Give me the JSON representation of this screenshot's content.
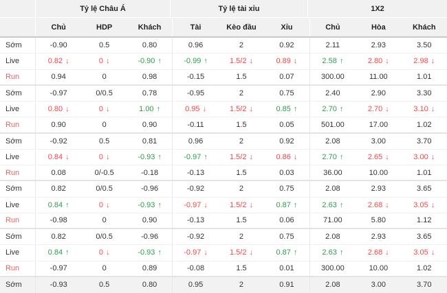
{
  "colors": {
    "red": "#ff4444",
    "green": "#2e9e4e",
    "run_label": "#e06666",
    "header_bg": "#f1f1f1",
    "header_border": "#c9c9c9",
    "shaded_bg": "#f2f2f2",
    "row_line": "#f0f0f0",
    "block_line": "#e3e3e3",
    "vsep": "#e8e8e8"
  },
  "header": {
    "groups": [
      "",
      "Tỷ lệ Châu Á",
      "Tỷ lệ tài xỉu",
      "1X2"
    ],
    "columns": [
      "",
      "Chủ",
      "HDP",
      "Khách",
      "Tài",
      "Kèo đầu",
      "Xỉu",
      "Chủ",
      "Hòa",
      "Khách"
    ]
  },
  "rows": [
    {
      "label": "Sớm",
      "cells": [
        {
          "v": "-0.90"
        },
        {
          "v": "0.5"
        },
        {
          "v": "0.80"
        },
        {
          "v": "0.96"
        },
        {
          "v": "2"
        },
        {
          "v": "0.92"
        },
        {
          "v": "2.11"
        },
        {
          "v": "2.93"
        },
        {
          "v": "3.50"
        }
      ]
    },
    {
      "label": "Live",
      "cells": [
        {
          "v": "0.82",
          "c": "red",
          "a": "down"
        },
        {
          "v": "0",
          "c": "red",
          "a": "down"
        },
        {
          "v": "-0.90",
          "c": "green",
          "a": "up"
        },
        {
          "v": "-0.99",
          "c": "green",
          "a": "up"
        },
        {
          "v": "1.5/2",
          "c": "red",
          "a": "down"
        },
        {
          "v": "0.89",
          "c": "red",
          "a": "down"
        },
        {
          "v": "2.58",
          "c": "green",
          "a": "up"
        },
        {
          "v": "2.80",
          "c": "red",
          "a": "down"
        },
        {
          "v": "2.98",
          "c": "red",
          "a": "down"
        }
      ]
    },
    {
      "label": "Run",
      "run": true,
      "block_end": true,
      "cells": [
        {
          "v": "0.94"
        },
        {
          "v": "0"
        },
        {
          "v": "0.98"
        },
        {
          "v": "-0.15"
        },
        {
          "v": "1.5"
        },
        {
          "v": "0.07"
        },
        {
          "v": "300.00"
        },
        {
          "v": "11.00"
        },
        {
          "v": "1.01"
        }
      ]
    },
    {
      "label": "Sớm",
      "cells": [
        {
          "v": "-0.97"
        },
        {
          "v": "0/0.5"
        },
        {
          "v": "0.78"
        },
        {
          "v": "-0.95"
        },
        {
          "v": "2"
        },
        {
          "v": "0.75"
        },
        {
          "v": "2.40"
        },
        {
          "v": "2.90"
        },
        {
          "v": "3.30"
        }
      ]
    },
    {
      "label": "Live",
      "cells": [
        {
          "v": "0.80",
          "c": "red",
          "a": "down"
        },
        {
          "v": "0",
          "c": "red",
          "a": "down"
        },
        {
          "v": "1.00",
          "c": "green",
          "a": "up"
        },
        {
          "v": "0.95",
          "c": "red",
          "a": "down"
        },
        {
          "v": "1.5/2",
          "c": "red",
          "a": "down"
        },
        {
          "v": "0.85",
          "c": "green",
          "a": "up"
        },
        {
          "v": "2.70",
          "c": "green",
          "a": "up"
        },
        {
          "v": "2.70",
          "c": "red",
          "a": "down"
        },
        {
          "v": "3.10",
          "c": "red",
          "a": "down"
        }
      ]
    },
    {
      "label": "Run",
      "run": true,
      "block_end": true,
      "cells": [
        {
          "v": "0.90"
        },
        {
          "v": "0"
        },
        {
          "v": "0.90"
        },
        {
          "v": "-0.11"
        },
        {
          "v": "1.5"
        },
        {
          "v": "0.05"
        },
        {
          "v": "501.00"
        },
        {
          "v": "17.00"
        },
        {
          "v": "1.02"
        }
      ]
    },
    {
      "label": "Sớm",
      "cells": [
        {
          "v": "-0.92"
        },
        {
          "v": "0.5"
        },
        {
          "v": "0.81"
        },
        {
          "v": "0.96"
        },
        {
          "v": "2"
        },
        {
          "v": "0.92"
        },
        {
          "v": "2.08"
        },
        {
          "v": "3.00"
        },
        {
          "v": "3.70"
        }
      ]
    },
    {
      "label": "Live",
      "cells": [
        {
          "v": "0.84",
          "c": "red",
          "a": "down"
        },
        {
          "v": "0",
          "c": "red",
          "a": "down"
        },
        {
          "v": "-0.93",
          "c": "green",
          "a": "up"
        },
        {
          "v": "-0.97",
          "c": "green",
          "a": "up"
        },
        {
          "v": "1.5/2",
          "c": "red",
          "a": "down"
        },
        {
          "v": "0.86",
          "c": "red",
          "a": "down"
        },
        {
          "v": "2.70",
          "c": "green",
          "a": "up"
        },
        {
          "v": "2.65",
          "c": "red",
          "a": "down"
        },
        {
          "v": "3.00",
          "c": "red",
          "a": "down"
        }
      ]
    },
    {
      "label": "Run",
      "run": true,
      "block_end": true,
      "cells": [
        {
          "v": "0.08"
        },
        {
          "v": "0/-0.5"
        },
        {
          "v": "-0.18"
        },
        {
          "v": "-0.13"
        },
        {
          "v": "1.5"
        },
        {
          "v": "0.03"
        },
        {
          "v": "36.00"
        },
        {
          "v": "10.00"
        },
        {
          "v": "1.01"
        }
      ]
    },
    {
      "label": "Sớm",
      "cells": [
        {
          "v": "0.82"
        },
        {
          "v": "0/0.5"
        },
        {
          "v": "-0.96"
        },
        {
          "v": "-0.92"
        },
        {
          "v": "2"
        },
        {
          "v": "0.75"
        },
        {
          "v": "2.08"
        },
        {
          "v": "2.93"
        },
        {
          "v": "3.65"
        }
      ]
    },
    {
      "label": "Live",
      "cells": [
        {
          "v": "0.84",
          "c": "green",
          "a": "up"
        },
        {
          "v": "0",
          "c": "red",
          "a": "down"
        },
        {
          "v": "-0.93",
          "c": "green",
          "a": "up"
        },
        {
          "v": "-0.97",
          "c": "red",
          "a": "down"
        },
        {
          "v": "1.5/2",
          "c": "red",
          "a": "down"
        },
        {
          "v": "0.87",
          "c": "green",
          "a": "up"
        },
        {
          "v": "2.63",
          "c": "green",
          "a": "up"
        },
        {
          "v": "2.68",
          "c": "red",
          "a": "down"
        },
        {
          "v": "3.05",
          "c": "red",
          "a": "down"
        }
      ]
    },
    {
      "label": "Run",
      "run": true,
      "block_end": true,
      "cells": [
        {
          "v": "-0.98"
        },
        {
          "v": "0"
        },
        {
          "v": "0.90"
        },
        {
          "v": "-0.13"
        },
        {
          "v": "1.5"
        },
        {
          "v": "0.06"
        },
        {
          "v": "71.00"
        },
        {
          "v": "5.80"
        },
        {
          "v": "1.12"
        }
      ]
    },
    {
      "label": "Sớm",
      "cells": [
        {
          "v": "0.82"
        },
        {
          "v": "0/0.5"
        },
        {
          "v": "-0.96"
        },
        {
          "v": "-0.92"
        },
        {
          "v": "2"
        },
        {
          "v": "0.75"
        },
        {
          "v": "2.08"
        },
        {
          "v": "2.93"
        },
        {
          "v": "3.65"
        }
      ]
    },
    {
      "label": "Live",
      "cells": [
        {
          "v": "0.84",
          "c": "green",
          "a": "up"
        },
        {
          "v": "0",
          "c": "red",
          "a": "down"
        },
        {
          "v": "-0.93",
          "c": "green",
          "a": "up"
        },
        {
          "v": "-0.97",
          "c": "red",
          "a": "down"
        },
        {
          "v": "1.5/2",
          "c": "red",
          "a": "down"
        },
        {
          "v": "0.87",
          "c": "green",
          "a": "up"
        },
        {
          "v": "2.63",
          "c": "green",
          "a": "up"
        },
        {
          "v": "2.68",
          "c": "red",
          "a": "down"
        },
        {
          "v": "3.05",
          "c": "red",
          "a": "down"
        }
      ]
    },
    {
      "label": "Run",
      "run": true,
      "block_end": true,
      "cells": [
        {
          "v": "-0.97"
        },
        {
          "v": "0"
        },
        {
          "v": "0.89"
        },
        {
          "v": "-0.08"
        },
        {
          "v": "1.5"
        },
        {
          "v": "0.01"
        },
        {
          "v": "300.00"
        },
        {
          "v": "10.00"
        },
        {
          "v": "1.02"
        }
      ]
    },
    {
      "label": "Sớm",
      "shaded": true,
      "cells": [
        {
          "v": "-0.93"
        },
        {
          "v": "0.5"
        },
        {
          "v": "0.80"
        },
        {
          "v": "0.95"
        },
        {
          "v": "2"
        },
        {
          "v": "0.91"
        },
        {
          "v": "2.08"
        },
        {
          "v": "3.00"
        },
        {
          "v": "3.70"
        }
      ]
    }
  ]
}
